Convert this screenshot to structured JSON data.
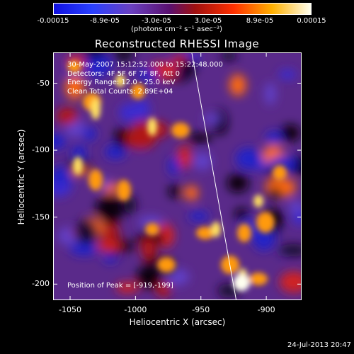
{
  "colorbar": {
    "ticks": [
      "-0.00015",
      "-8.9e-05",
      "-3.0e-05",
      "3.0e-05",
      "8.9e-05",
      "0.00015"
    ],
    "units_label": "(photons cm⁻² s⁻¹ asec⁻²)"
  },
  "chart_data": {
    "type": "heatmap",
    "title": "Reconstructed RHESSI Image",
    "xlabel": "Heliocentric X (arcsec)",
    "ylabel": "Heliocentric Y (arcsec)",
    "xlim": [
      -1063,
      -873
    ],
    "ylim": [
      -212,
      -27
    ],
    "x_ticks": [
      -1050,
      -1000,
      -950,
      -900
    ],
    "y_ticks": [
      -50,
      -100,
      -150,
      -200
    ],
    "colormap": "RHESSI rainbow (blue-purple-red-orange-yellow-white)",
    "color_range": [
      -0.00015,
      0.00015
    ],
    "annotations": [
      "30-May-2007 15:12:52.000 to 15:22:48.000",
      "Detectors: 4F 5F 6F 7F 8F, Att 0",
      "Energy Range: 12.0 - 25.0 keV",
      "Clean    Total Counts: 2.89E+04"
    ],
    "peak_label": "Position of Peak = [-919,-199]",
    "peak": [
      -919,
      -199
    ],
    "limb_line": [
      [
        -957,
        -27
      ],
      [
        -923,
        -212
      ]
    ]
  },
  "footer": {
    "timestamp": "24-Jul-2013 20:47"
  }
}
